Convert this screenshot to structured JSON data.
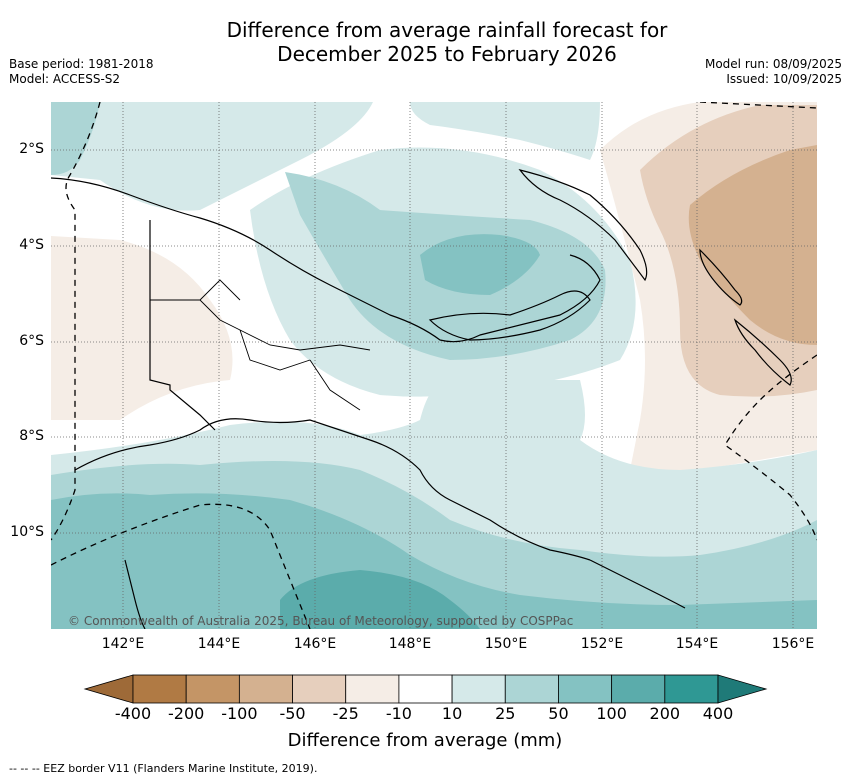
{
  "title_line1": "Difference from average rainfall forecast for",
  "title_line2": "December 2025 to February 2026",
  "base_period": "Base period: 1981-2018",
  "model": "Model: ACCESS-S2",
  "model_run": "Model run: 08/09/2025",
  "issued": "Issued: 10/09/2025",
  "copyright": "© Commonwealth of Australia 2025, Bureau of Meteorology, supported by COSPPac",
  "footer": "--  --  -- EEZ border V11 (Flanders Marine Institute, 2019).",
  "lon_ticks": [
    "142°E",
    "144°E",
    "146°E",
    "148°E",
    "150°E",
    "152°E",
    "154°E",
    "156°E"
  ],
  "lat_ticks": [
    "2°S",
    "4°S",
    "6°S",
    "8°S",
    "10°S"
  ],
  "colorbar": {
    "title": "Difference from average (mm)",
    "labels": [
      "-400",
      "-200",
      "-100",
      "-50",
      "-25",
      "-10",
      "10",
      "25",
      "50",
      "100",
      "200",
      "400"
    ],
    "colors": [
      "#9e6a38",
      "#b07a44",
      "#c49566",
      "#d4b190",
      "#e6cfbd",
      "#f5ede6",
      "#ffffff",
      "#d5e9e9",
      "#acd5d5",
      "#84c2c2",
      "#5bacab",
      "#2f9894",
      "#1f7a78"
    ]
  },
  "map_colors": {
    "land_line": "#000000",
    "grid": "#555555"
  }
}
